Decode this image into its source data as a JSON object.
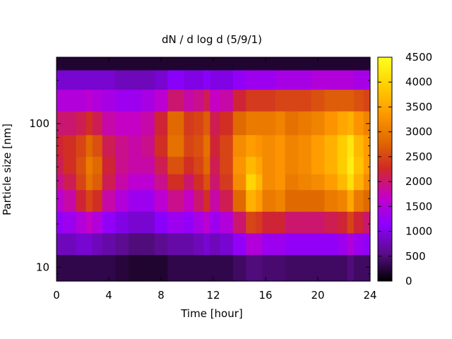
{
  "chart_data": {
    "type": "heatmap",
    "title": "dN / d log d (5/9/1)",
    "xlabel": "Time [hour]",
    "ylabel": "Particle size [nm]",
    "xlim": [
      0,
      24
    ],
    "x_ticks": [
      0,
      4,
      8,
      12,
      16,
      20,
      24
    ],
    "x_tick_labels": [
      "0",
      "4",
      "8",
      "12",
      "16",
      "20",
      "24"
    ],
    "y_scale": "log",
    "ylim": [
      8,
      290
    ],
    "y_ticks": [
      10,
      100
    ],
    "y_tick_labels": [
      "10",
      "100"
    ],
    "colorbar": {
      "min": 0,
      "max": 4500,
      "ticks": [
        0,
        500,
        1000,
        1500,
        2000,
        2500,
        3000,
        3500,
        4000,
        4500
      ],
      "tick_labels": [
        "0",
        "500",
        "1000",
        "1500",
        "2000",
        "2500",
        "3000",
        "3500",
        "4000",
        "4500"
      ],
      "colormap": "black-purple-magenta-orange-yellow",
      "colors": [
        "#000000",
        "#5a0d8a",
        "#8c00ff",
        "#c400c8",
        "#d02828",
        "#e06a00",
        "#ff9a00",
        "#ffd000",
        "#ffff20"
      ]
    },
    "grid": false,
    "diameter_nm": [
      10,
      15,
      20,
      30,
      40,
      50,
      70,
      100,
      150,
      200,
      280
    ],
    "time_hour": [
      0,
      1,
      2,
      2.5,
      3,
      4,
      5,
      6,
      7,
      8,
      9,
      9.5,
      10,
      11,
      11.5,
      12,
      13,
      14,
      15,
      15.5,
      16,
      16.5,
      17,
      18,
      19,
      20,
      21,
      22,
      22.5,
      23,
      24
    ],
    "values": [
      [
        300,
        800,
        1200,
        1600,
        1900,
        2100,
        2200,
        2000,
        1500,
        900,
        200
      ],
      [
        300,
        800,
        1300,
        1800,
        2100,
        2300,
        2300,
        2000,
        1500,
        900,
        200
      ],
      [
        300,
        900,
        1500,
        2200,
        2500,
        2600,
        2500,
        2100,
        1500,
        900,
        200
      ],
      [
        300,
        900,
        1700,
        2500,
        2900,
        3000,
        2800,
        2300,
        1600,
        900,
        200
      ],
      [
        300,
        800,
        1500,
        2300,
        2700,
        2800,
        2600,
        2100,
        1500,
        900,
        200
      ],
      [
        300,
        700,
        1200,
        1800,
        2100,
        2200,
        2100,
        1800,
        1400,
        900,
        200
      ],
      [
        250,
        600,
        1000,
        1500,
        1800,
        1900,
        1900,
        1700,
        1300,
        800,
        200
      ],
      [
        200,
        500,
        900,
        1300,
        1600,
        1800,
        1800,
        1700,
        1300,
        800,
        200
      ],
      [
        200,
        500,
        900,
        1300,
        1600,
        1800,
        1900,
        1800,
        1400,
        800,
        200
      ],
      [
        200,
        600,
        1100,
        1600,
        1900,
        2100,
        2300,
        2200,
        1600,
        900,
        200
      ],
      [
        300,
        700,
        1300,
        1900,
        2300,
        2600,
        2900,
        2800,
        2000,
        1100,
        200
      ],
      [
        300,
        700,
        1300,
        1900,
        2300,
        2600,
        2900,
        2800,
        2000,
        1100,
        200
      ],
      [
        300,
        700,
        1200,
        1700,
        2000,
        2300,
        2500,
        2400,
        1800,
        1000,
        200
      ],
      [
        300,
        800,
        1400,
        2000,
        2300,
        2500,
        2600,
        2500,
        1900,
        1000,
        200
      ],
      [
        300,
        900,
        1600,
        2300,
        2600,
        2800,
        2900,
        2700,
        2100,
        1100,
        200
      ],
      [
        300,
        800,
        1300,
        1800,
        2000,
        2100,
        2200,
        2100,
        1700,
        1000,
        200
      ],
      [
        300,
        900,
        1500,
        2100,
        2400,
        2500,
        2500,
        2300,
        1800,
        1000,
        200
      ],
      [
        400,
        1200,
        2000,
        2800,
        3200,
        3300,
        3200,
        2800,
        2200,
        1200,
        200
      ],
      [
        500,
        1500,
        2500,
        3600,
        4000,
        3700,
        3400,
        3000,
        2400,
        1300,
        200
      ],
      [
        500,
        1500,
        2400,
        3400,
        3700,
        3500,
        3300,
        3000,
        2400,
        1300,
        200
      ],
      [
        450,
        1300,
        2200,
        3000,
        3200,
        3200,
        3200,
        3000,
        2400,
        1300,
        200
      ],
      [
        450,
        1300,
        2200,
        3000,
        3200,
        3200,
        3200,
        3000,
        2400,
        1300,
        200
      ],
      [
        450,
        1300,
        2200,
        3100,
        3300,
        3300,
        3300,
        3100,
        2500,
        1400,
        200
      ],
      [
        400,
        1200,
        2000,
        2800,
        3000,
        3100,
        3100,
        2900,
        2500,
        1400,
        200
      ],
      [
        400,
        1200,
        2000,
        2800,
        3100,
        3200,
        3200,
        3000,
        2500,
        1400,
        200
      ],
      [
        400,
        1200,
        2000,
        2800,
        3200,
        3400,
        3400,
        3100,
        2600,
        1500,
        200
      ],
      [
        400,
        1200,
        2100,
        3000,
        3400,
        3600,
        3600,
        3300,
        2700,
        1500,
        200
      ],
      [
        400,
        1300,
        2200,
        3100,
        3700,
        3900,
        3900,
        3500,
        2700,
        1500,
        200
      ],
      [
        500,
        1500,
        2500,
        3500,
        4100,
        4300,
        4200,
        3600,
        2700,
        1500,
        200
      ],
      [
        400,
        1300,
        2200,
        3000,
        3600,
        3800,
        3700,
        3300,
        2600,
        1400,
        200
      ],
      [
        400,
        1200,
        2000,
        2800,
        3200,
        3400,
        3400,
        3100,
        2500,
        1400,
        200
      ]
    ]
  }
}
